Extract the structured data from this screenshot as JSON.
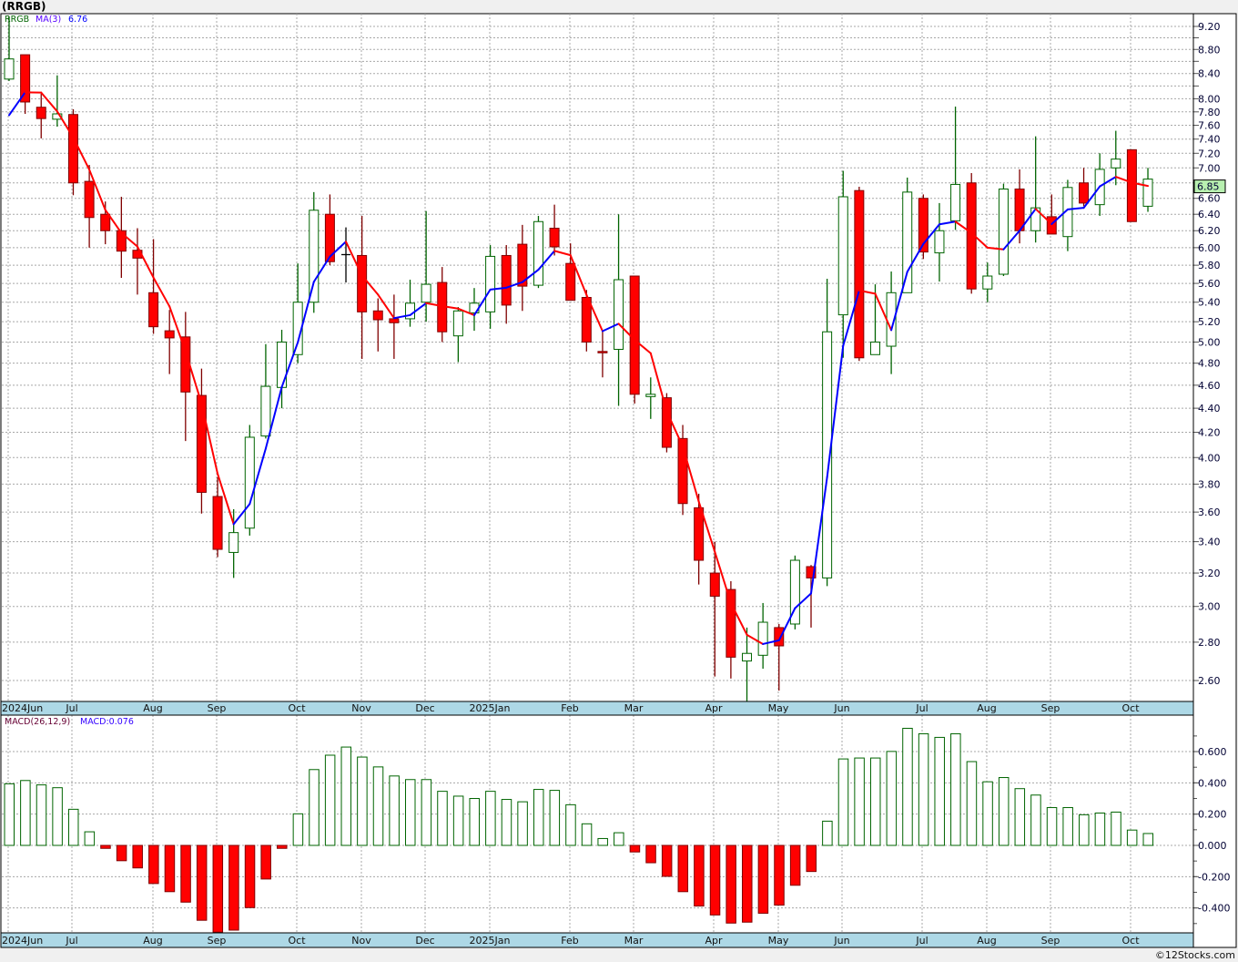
{
  "title": "(RRGB)",
  "legend": {
    "symbol": "RRGB",
    "ma_label": "MA(3)",
    "ma_value": "6.76",
    "macd_label": "MACD(26,12,9)",
    "macd_value": "MACD:0.076"
  },
  "last_price_label": "6.85",
  "footer": "©12Stocks.com",
  "colors": {
    "up": "#006400",
    "down_fill": "#ff0000",
    "down_stroke": "#800000",
    "doji": "#000000",
    "ma_up": "#0000ff",
    "ma_down": "#ff0000",
    "date_bar": "#add8e6",
    "price_box": "#b8f0b0"
  },
  "chart_data": [
    {
      "type": "candlestick",
      "title": "RRGB weekly",
      "scale": "log",
      "ylim": [
        2.48,
        9.45
      ],
      "price_ticks": [
        9.2,
        9.0,
        8.8,
        8.6,
        8.4,
        8.2,
        8.0,
        7.8,
        7.6,
        7.4,
        7.2,
        7.0,
        6.8,
        6.6,
        6.4,
        6.2,
        6.0,
        5.8,
        5.6,
        5.4,
        5.2,
        5.0,
        4.8,
        4.6,
        4.4,
        4.2,
        4.0,
        3.8,
        3.6,
        3.4,
        3.2,
        3.0,
        2.8,
        2.6
      ],
      "price_tick_labels": [
        "9.20",
        "8.80",
        "8.40",
        "8.00",
        "7.80",
        "7.60",
        "7.40",
        "7.20",
        "7.00",
        "6.60",
        "6.40",
        "6.20",
        "6.00",
        "5.80",
        "5.60",
        "5.40",
        "5.20",
        "5.00",
        "4.80",
        "4.60",
        "4.40",
        "4.20",
        "4.00",
        "3.80",
        "3.60",
        "3.40",
        "3.20",
        "3.00",
        "2.80",
        "2.60"
      ],
      "month_labels": [
        {
          "label": "2024Jun",
          "index": 0
        },
        {
          "label": "Jul",
          "index": 4
        },
        {
          "label": "Aug",
          "index": 9
        },
        {
          "label": "Sep",
          "index": 13
        },
        {
          "label": "Oct",
          "index": 18
        },
        {
          "label": "Nov",
          "index": 22
        },
        {
          "label": "Dec",
          "index": 26
        },
        {
          "label": "2025Jan",
          "index": 30
        },
        {
          "label": "Feb",
          "index": 35
        },
        {
          "label": "Mar",
          "index": 39
        },
        {
          "label": "Apr",
          "index": 44
        },
        {
          "label": "May",
          "index": 48
        },
        {
          "label": "Jun",
          "index": 52
        },
        {
          "label": "Jul",
          "index": 57
        },
        {
          "label": "Aug",
          "index": 61
        },
        {
          "label": "Sep",
          "index": 65
        },
        {
          "label": "Oct",
          "index": 70
        }
      ],
      "ohlc_fields": [
        "open",
        "high",
        "low",
        "close"
      ],
      "ohlc": [
        [
          8.31,
          9.38,
          8.28,
          8.64
        ],
        [
          8.71,
          8.71,
          7.77,
          7.95
        ],
        [
          7.87,
          8.08,
          7.41,
          7.7
        ],
        [
          7.69,
          8.37,
          7.58,
          7.77
        ],
        [
          7.76,
          7.84,
          6.64,
          6.8
        ],
        [
          6.82,
          7.04,
          6.0,
          6.36
        ],
        [
          6.4,
          6.56,
          6.04,
          6.2
        ],
        [
          6.2,
          6.62,
          5.66,
          5.96
        ],
        [
          5.97,
          6.23,
          5.48,
          5.88
        ],
        [
          5.5,
          6.1,
          5.08,
          5.15
        ],
        [
          5.11,
          5.32,
          4.7,
          5.04
        ],
        [
          5.05,
          5.3,
          4.13,
          4.54
        ],
        [
          4.51,
          4.75,
          3.59,
          3.74
        ],
        [
          3.71,
          3.85,
          3.3,
          3.35
        ],
        [
          3.33,
          3.62,
          3.17,
          3.46
        ],
        [
          3.49,
          4.26,
          3.44,
          4.16
        ],
        [
          4.17,
          4.98,
          4.15,
          4.59
        ],
        [
          4.58,
          5.12,
          4.4,
          5.0
        ],
        [
          4.88,
          5.82,
          4.8,
          5.4
        ],
        [
          5.4,
          6.68,
          5.29,
          6.45
        ],
        [
          6.4,
          6.65,
          5.8,
          5.84
        ],
        [
          5.92,
          6.24,
          5.61,
          5.92
        ],
        [
          5.91,
          6.38,
          4.84,
          5.3
        ],
        [
          5.31,
          5.44,
          4.91,
          5.22
        ],
        [
          5.23,
          5.48,
          4.84,
          5.19
        ],
        [
          5.23,
          5.64,
          5.15,
          5.39
        ],
        [
          5.4,
          6.44,
          5.2,
          5.59
        ],
        [
          5.61,
          5.78,
          5.0,
          5.1
        ],
        [
          5.06,
          5.35,
          4.81,
          5.31
        ],
        [
          5.29,
          5.55,
          5.11,
          5.39
        ],
        [
          5.3,
          6.03,
          5.13,
          5.9
        ],
        [
          5.91,
          6.03,
          5.18,
          5.37
        ],
        [
          6.04,
          6.27,
          5.31,
          5.57
        ],
        [
          5.58,
          6.38,
          5.55,
          6.31
        ],
        [
          6.23,
          6.52,
          5.91,
          6.01
        ],
        [
          5.82,
          6.05,
          5.42,
          5.42
        ],
        [
          5.45,
          5.53,
          4.91,
          5.0
        ],
        [
          4.91,
          5.1,
          4.67,
          4.9
        ],
        [
          4.93,
          6.4,
          4.42,
          5.64
        ],
        [
          5.68,
          5.68,
          4.44,
          4.52
        ],
        [
          4.5,
          4.67,
          4.31,
          4.52
        ],
        [
          4.49,
          4.53,
          4.04,
          4.08
        ],
        [
          4.15,
          4.26,
          3.58,
          3.66
        ],
        [
          3.63,
          3.73,
          3.13,
          3.28
        ],
        [
          3.2,
          3.4,
          2.62,
          3.06
        ],
        [
          3.1,
          3.15,
          2.61,
          2.72
        ],
        [
          2.7,
          2.88,
          2.48,
          2.74
        ],
        [
          2.73,
          3.02,
          2.66,
          2.91
        ],
        [
          2.88,
          2.9,
          2.55,
          2.78
        ],
        [
          2.9,
          3.31,
          2.87,
          3.28
        ],
        [
          3.24,
          3.25,
          2.88,
          3.17
        ],
        [
          3.17,
          5.65,
          3.12,
          5.1
        ],
        [
          5.27,
          6.96,
          4.85,
          6.62
        ],
        [
          6.7,
          6.75,
          4.82,
          4.85
        ],
        [
          4.88,
          5.59,
          4.88,
          5.0
        ],
        [
          4.96,
          5.73,
          4.7,
          5.5
        ],
        [
          5.5,
          6.87,
          5.5,
          6.68
        ],
        [
          6.6,
          6.65,
          5.87,
          5.95
        ],
        [
          5.94,
          6.54,
          5.62,
          6.2
        ],
        [
          6.32,
          7.88,
          6.21,
          6.78
        ],
        [
          6.8,
          6.93,
          5.49,
          5.54
        ],
        [
          5.54,
          5.83,
          5.4,
          5.68
        ],
        [
          5.7,
          6.79,
          5.68,
          6.72
        ],
        [
          6.72,
          6.98,
          6.05,
          6.2
        ],
        [
          6.2,
          7.44,
          6.06,
          6.48
        ],
        [
          6.37,
          6.65,
          6.16,
          6.16
        ],
        [
          6.13,
          6.84,
          5.96,
          6.74
        ],
        [
          6.8,
          7.0,
          6.5,
          6.54
        ],
        [
          6.52,
          7.2,
          6.38,
          6.98
        ],
        [
          7.0,
          7.52,
          6.77,
          7.12
        ],
        [
          7.25,
          7.25,
          6.31,
          6.31
        ],
        [
          6.5,
          7.0,
          6.43,
          6.85
        ]
      ],
      "ma3_initial": [
        7.75,
        8.1
      ],
      "ma3_last": 6.76,
      "last_price": 6.85
    },
    {
      "type": "bar",
      "title": "MACD(26,12,9)",
      "ylim": [
        -0.56,
        0.82
      ],
      "y_ticks": [
        0.6,
        0.4,
        0.2,
        0.0,
        -0.2,
        -0.4
      ],
      "y_tick_labels": [
        "0.600",
        "0.400",
        "0.200",
        "0.000",
        "-0.200",
        "-0.400"
      ],
      "values": [
        0.394,
        0.415,
        0.387,
        0.369,
        0.231,
        0.087,
        -0.019,
        -0.098,
        -0.144,
        -0.244,
        -0.296,
        -0.363,
        -0.479,
        -0.555,
        -0.542,
        -0.398,
        -0.215,
        -0.019,
        0.202,
        0.485,
        0.577,
        0.629,
        0.565,
        0.502,
        0.444,
        0.421,
        0.421,
        0.346,
        0.315,
        0.3,
        0.346,
        0.294,
        0.279,
        0.358,
        0.352,
        0.26,
        0.138,
        0.044,
        0.081,
        -0.042,
        -0.111,
        -0.198,
        -0.296,
        -0.388,
        -0.445,
        -0.497,
        -0.491,
        -0.434,
        -0.382,
        -0.255,
        -0.167,
        0.155,
        0.553,
        0.559,
        0.559,
        0.601,
        0.749,
        0.714,
        0.691,
        0.714,
        0.536,
        0.407,
        0.434,
        0.363,
        0.322,
        0.242,
        0.242,
        0.196,
        0.207,
        0.213,
        0.098,
        0.076
      ]
    }
  ]
}
